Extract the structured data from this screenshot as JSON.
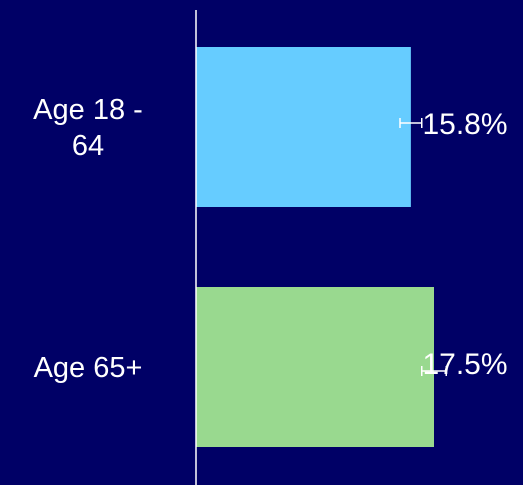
{
  "chart_data": {
    "type": "bar",
    "orientation": "horizontal",
    "categories": [
      [
        "Age 18 -",
        "64"
      ],
      [
        "Age 65+"
      ]
    ],
    "values": [
      15.8,
      17.5
    ],
    "value_labels": [
      "15.8%",
      "17.5%"
    ],
    "error_margins": [
      0.8,
      0.9
    ],
    "colors": [
      "#66ccff",
      "#99d98f"
    ],
    "value_unit": "%",
    "xlim": [
      0,
      25
    ],
    "grid": false,
    "legend": "none"
  },
  "colors": {
    "background": "#000066",
    "axis": "#ffffff",
    "text": "#ffffff",
    "error_bar": "#ffffff"
  }
}
